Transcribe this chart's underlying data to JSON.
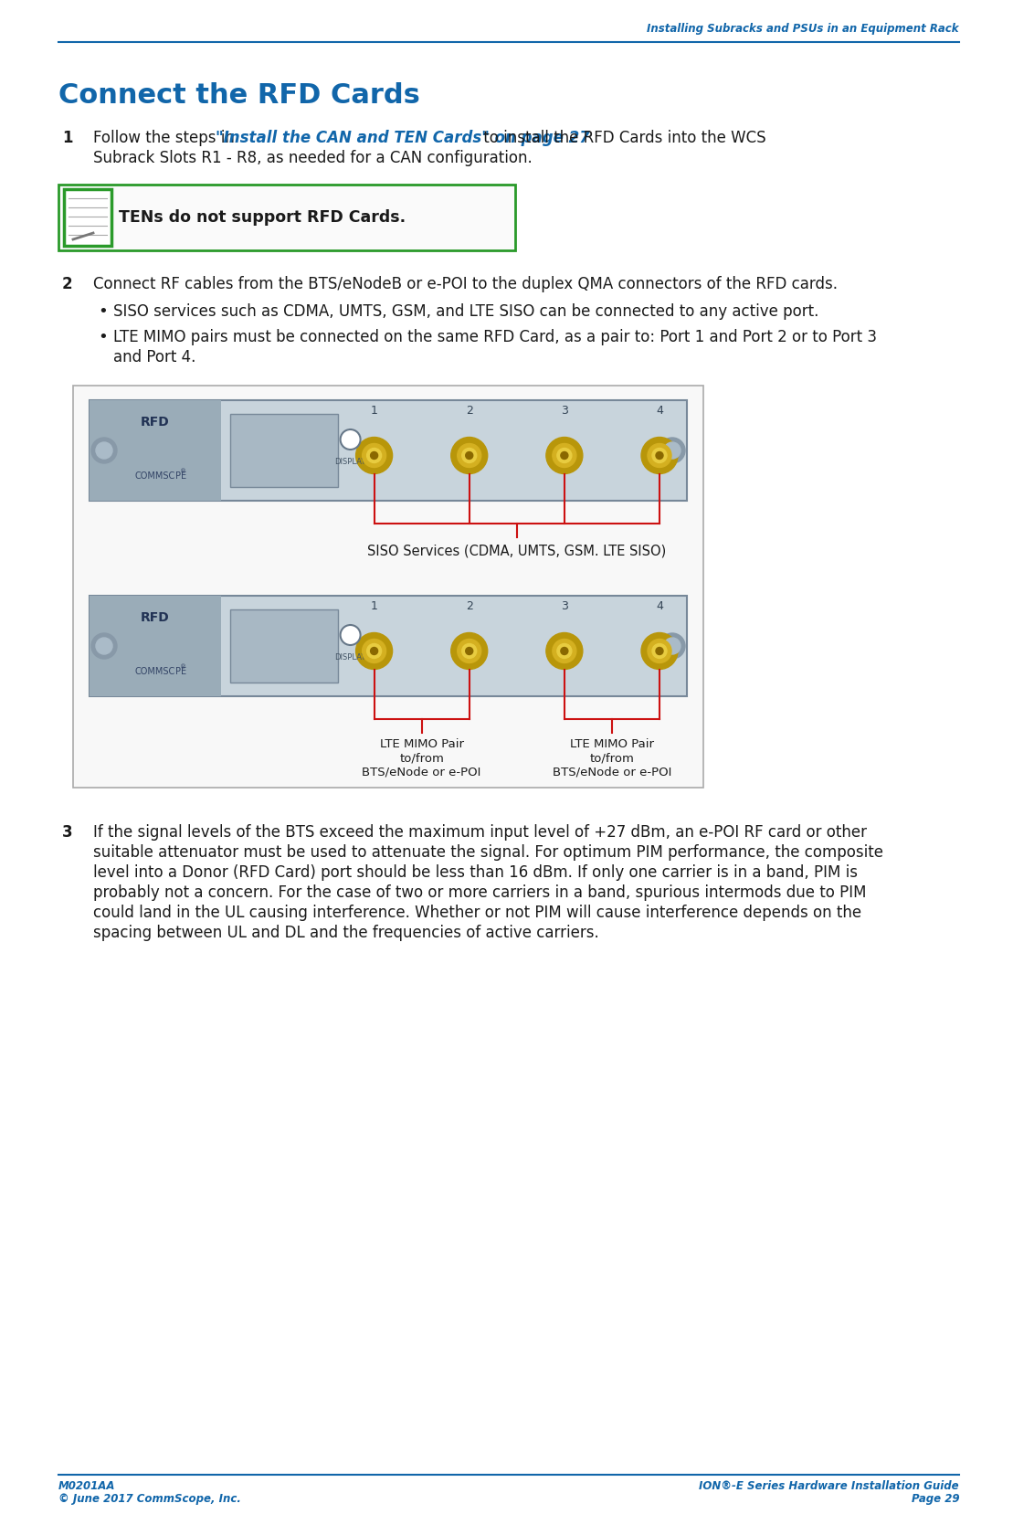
{
  "header_text": "Installing Subracks and PSUs in an Equipment Rack",
  "header_color": "#1166aa",
  "title": "Connect the RFD Cards",
  "title_color": "#1166aa",
  "footer_left_line1": "M0201AA",
  "footer_left_line2": "© June 2017 CommScope, Inc.",
  "footer_right_line1": "ION®-E Series Hardware Installation Guide",
  "footer_right_line2": "Page 29",
  "footer_color": "#1166aa",
  "body_color": "#1a1a1a",
  "link_color": "#1166aa",
  "bg_color": "#ffffff",
  "step1_normal1": "Follow the steps in ",
  "step1_link": "\"Install the CAN and TEN Cards\" on page 27",
  "step1_normal2": " to install the RFD Cards into the WCS",
  "step1_line2": "Subrack Slots R1 - R8, as needed for a CAN configuration.",
  "note_text": "TENs do not support RFD Cards.",
  "step2_text": "Connect RF cables from the BTS/eNodeB or e-POI to the duplex QMA connectors of the RFD cards.",
  "bullet1": "SISO services such as CDMA, UMTS, GSM, and LTE SISO can be connected to any active port.",
  "bullet2_line1": "LTE MIMO pairs must be connected on the same RFD Card, as a pair to: Port 1 and Port 2 or to Port 3",
  "bullet2_line2": "and Port 4.",
  "step3_line1": "If the signal levels of the BTS exceed the maximum input level of +27 dBm, an e-POI RF card or other",
  "step3_line2": "suitable attenuator must be used to attenuate the signal. For optimum PIM performance, the composite",
  "step3_line3": "level into a Donor (RFD Card) port should be less than 16 dBm. If only one carrier is in a band, PIM is",
  "step3_line4": "probably not a concern. For the case of two or more carriers in a band, spurious intermods due to PIM",
  "step3_line5": "could land in the UL causing interference. Whether or not PIM will cause interference depends on the",
  "step3_line6": "spacing between UL and DL and the frequencies of active carriers.",
  "siso_label": "SISO Services (CDMA, UMTS, GSM. LTE SISO)",
  "mimo_label1_line1": "LTE MIMO Pair",
  "mimo_label1_line2": "to/from",
  "mimo_label1_line3": "BTS/eNode or e-POI",
  "mimo_label2_line1": "LTE MIMO Pair",
  "mimo_label2_line2": "to/from",
  "mimo_label2_line3": "BTS/eNode or e-POI",
  "card_bg": "#c8d4dc",
  "card_left_bg": "#9aacb8",
  "card_display_bg": "#b0bcc4",
  "card_border": "#888888",
  "connector_outer": "#b8960a",
  "connector_mid": "#d4b020",
  "connector_inner": "#e8cc40",
  "connector_center": "#8a6800",
  "latch_color": "#8899a8",
  "bracket_color": "#cc1111",
  "diag_border": "#aaaaaa",
  "diag_bg": "#f8f8f8"
}
